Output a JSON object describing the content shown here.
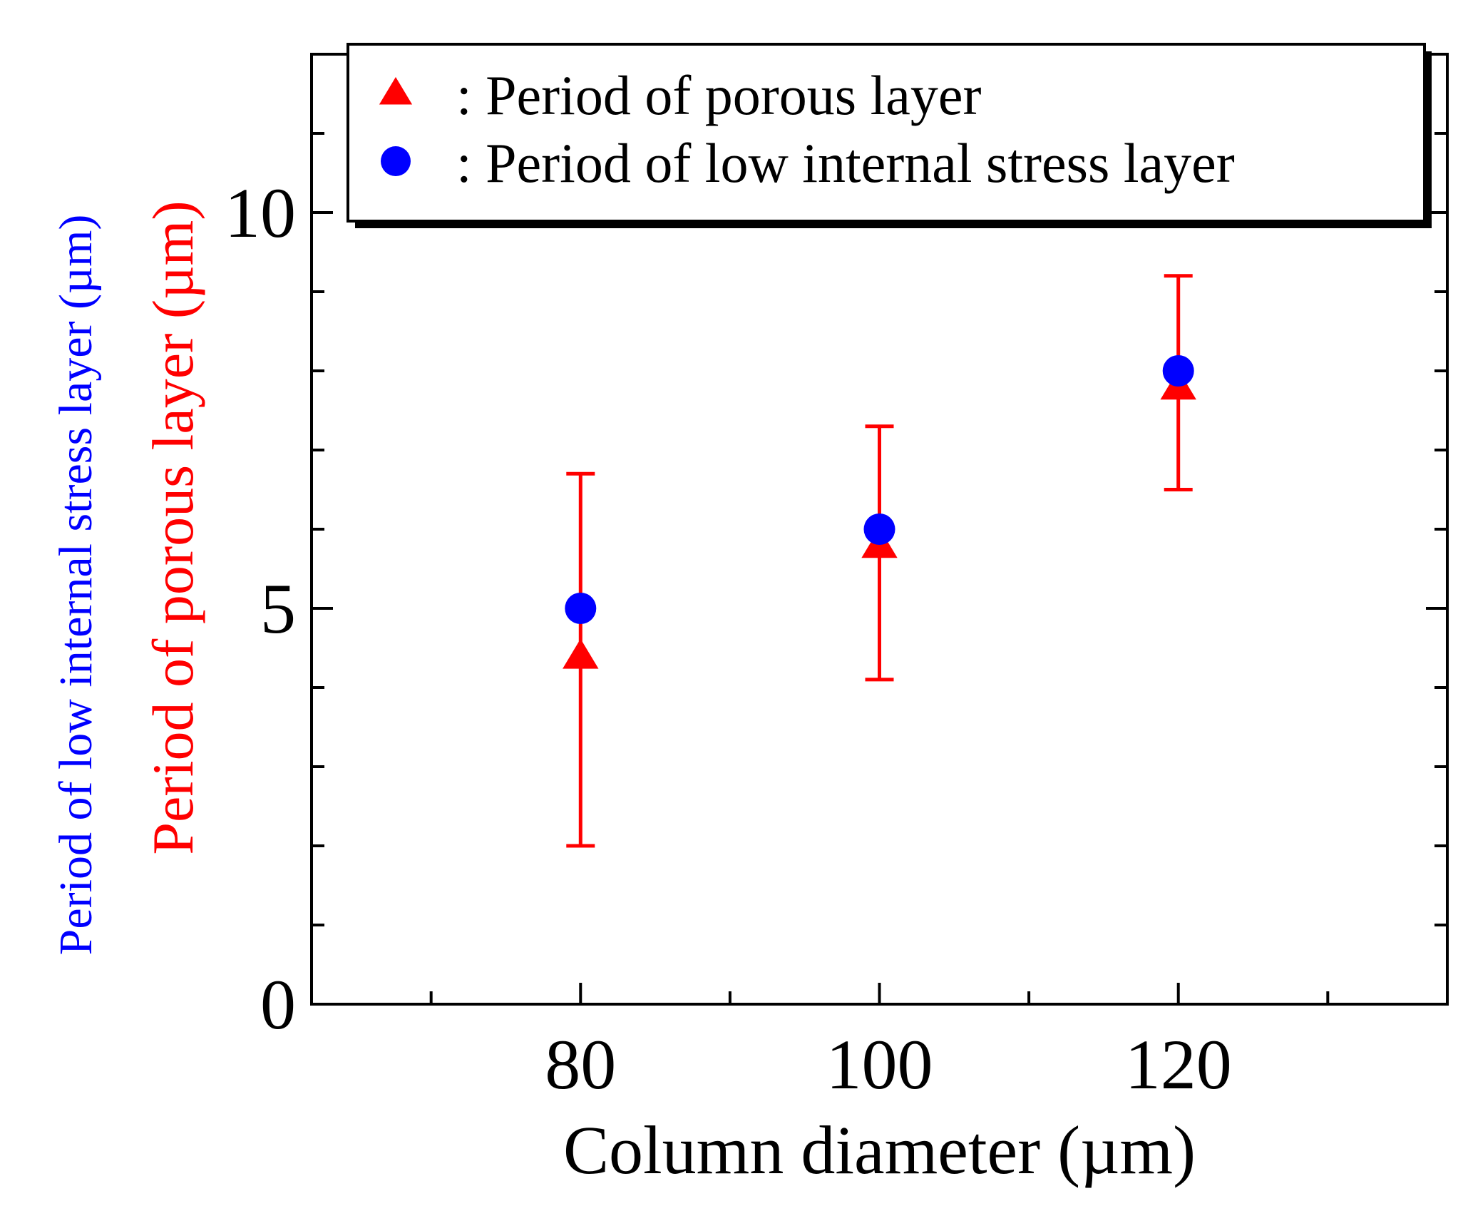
{
  "colors": {
    "porous": "#ff0000",
    "low_stress": "#0000ff",
    "axis": "#000000"
  },
  "chart_data": {
    "type": "scatter",
    "xlabel": "Column diameter (µm)",
    "ylabel_blue": "Period of low internal stress layer (µm)",
    "ylabel_red": "Period of porous layer (µm)",
    "xlim": [
      62,
      138
    ],
    "ylim": [
      0,
      12
    ],
    "x_ticks": [
      80,
      100,
      120
    ],
    "x_minor_ticks": [
      70,
      90,
      110,
      130
    ],
    "y_ticks": [
      0,
      5,
      10
    ],
    "y_tick_labels": [
      "0",
      "5",
      "10"
    ],
    "y_minor_ticks": [
      1,
      2,
      3,
      4,
      6,
      7,
      8,
      9,
      11
    ],
    "x_tick_labels": [
      "80",
      "100",
      "120"
    ],
    "legend_position": "top-right",
    "series": [
      {
        "name": "porous",
        "legend_label": ": Period of porous layer",
        "marker": "triangle",
        "x": [
          80,
          100,
          120
        ],
        "y": [
          4.4,
          5.8,
          7.8
        ],
        "err_low": [
          2.0,
          4.1,
          6.5
        ],
        "err_high": [
          6.7,
          7.3,
          9.2
        ]
      },
      {
        "name": "low_stress",
        "legend_label": ": Period of low internal stress layer",
        "marker": "circle",
        "x": [
          80,
          100,
          120
        ],
        "y": [
          5.0,
          6.0,
          8.0
        ]
      }
    ]
  }
}
